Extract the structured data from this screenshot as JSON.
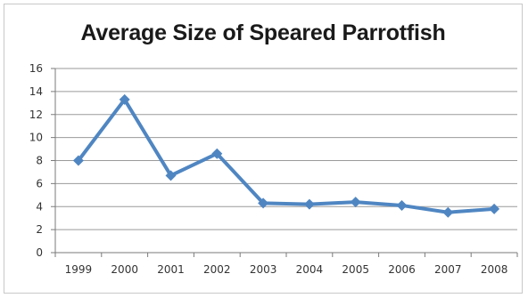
{
  "chart_data": {
    "type": "line",
    "title": "Average Size of Speared Parrotfish",
    "xlabel": "",
    "ylabel": "",
    "categories": [
      "1999",
      "2000",
      "2001",
      "2002",
      "2003",
      "2004",
      "2005",
      "2006",
      "2007",
      "2008"
    ],
    "series": [
      {
        "values": [
          8.0,
          13.3,
          6.7,
          8.6,
          4.3,
          4.2,
          4.4,
          4.1,
          3.5,
          3.8
        ]
      }
    ],
    "ylim": [
      0,
      16
    ],
    "yticks": [
      0,
      2,
      4,
      6,
      8,
      10,
      12,
      14,
      16
    ],
    "grid": true,
    "legend": "none",
    "colors": {
      "line": "#4f86c2",
      "grid": "#9a9a9a",
      "axis": "#7a7a7a"
    }
  }
}
